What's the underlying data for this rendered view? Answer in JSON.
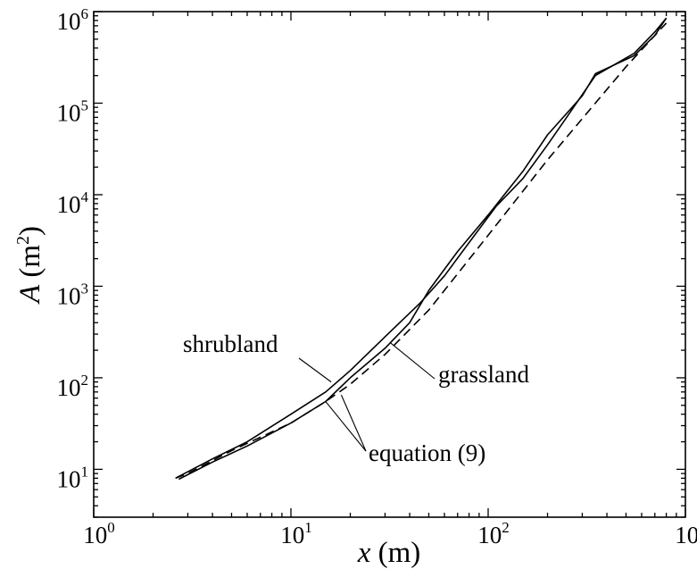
{
  "chart_data": {
    "type": "line",
    "x_scale": "log",
    "y_scale": "log",
    "xlim": [
      1,
      1000
    ],
    "ylim": [
      3,
      1000000
    ],
    "x_ticks": [
      {
        "value": 1,
        "base": "10",
        "exp": "0"
      },
      {
        "value": 10,
        "base": "10",
        "exp": "1"
      },
      {
        "value": 100,
        "base": "10",
        "exp": "2"
      },
      {
        "value": 1000,
        "base": "10",
        "exp": "3"
      }
    ],
    "y_ticks": [
      {
        "value": 10,
        "base": "10",
        "exp": "1"
      },
      {
        "value": 100,
        "base": "10",
        "exp": "2"
      },
      {
        "value": 1000,
        "base": "10",
        "exp": "3"
      },
      {
        "value": 10000,
        "base": "10",
        "exp": "4"
      },
      {
        "value": 100000,
        "base": "10",
        "exp": "5"
      },
      {
        "value": 1000000,
        "base": "10",
        "exp": "6"
      }
    ],
    "xlabel": {
      "var": "x",
      "unit": " (m)"
    },
    "ylabel": {
      "var": "A",
      "unit_open": " (m",
      "unit_exp": "2",
      "unit_close": ")"
    },
    "grid": false,
    "series": [
      {
        "name": "shrubland",
        "style": "solid",
        "x": [
          2.6,
          4,
          6,
          10,
          15,
          20,
          30,
          45,
          60,
          80,
          110,
          150,
          200,
          250,
          350,
          550,
          700,
          800
        ],
        "y": [
          8,
          13,
          20,
          40,
          70,
          120,
          280,
          650,
          1300,
          3000,
          7500,
          15000,
          35000,
          70000,
          200000,
          350000,
          600000,
          850000
        ]
      },
      {
        "name": "grassland",
        "style": "solid",
        "x": [
          2.7,
          4,
          6,
          10,
          15,
          20,
          30,
          40,
          50,
          70,
          100,
          150,
          200,
          300,
          350,
          550,
          700,
          800
        ],
        "y": [
          7.8,
          12,
          18,
          32,
          55,
          100,
          210,
          400,
          900,
          2400,
          6000,
          18000,
          45000,
          120000,
          210000,
          330000,
          550000,
          850000
        ]
      },
      {
        "name": "equation (9)",
        "style": "dashed",
        "x": [
          2.6,
          3,
          5,
          10,
          15,
          20,
          30,
          50,
          100,
          200,
          500,
          800
        ],
        "y": [
          8,
          9,
          16,
          32,
          55,
          85,
          180,
          550,
          3600,
          24000,
          250000,
          750000
        ]
      }
    ],
    "annotations": [
      {
        "text": "shrubland",
        "target_series": "shrubland",
        "target_x": 16,
        "target_y": 90
      },
      {
        "text": "grassland",
        "target_series": "grassland",
        "target_x": 32,
        "target_y": 240
      },
      {
        "text": "equation (9)",
        "target_series": "equation (9)",
        "target_x": 15,
        "target_y": 55
      },
      {
        "text": "equation (9)",
        "target_series": "equation (9)",
        "target_x": 18,
        "target_y": 65
      }
    ]
  }
}
